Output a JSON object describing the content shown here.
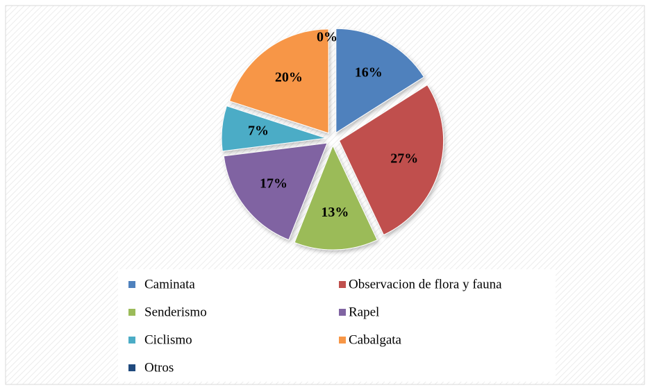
{
  "chart_data": {
    "type": "pie",
    "categories": [
      "Caminata",
      "Observacion de flora y fauna",
      "Senderismo",
      "Rapel",
      "Ciclismo",
      "Cabalgata",
      "Otros"
    ],
    "values": [
      16,
      27,
      13,
      17,
      7,
      20,
      0
    ],
    "value_labels": [
      "16%",
      "27%",
      "13%",
      "17%",
      "7%",
      "20%",
      "0%"
    ],
    "colors": [
      "#4f81bd",
      "#c0504d",
      "#9bbb59",
      "#8064a2",
      "#4bacc6",
      "#f79646",
      "#1f497d"
    ],
    "legend": "bottom"
  }
}
